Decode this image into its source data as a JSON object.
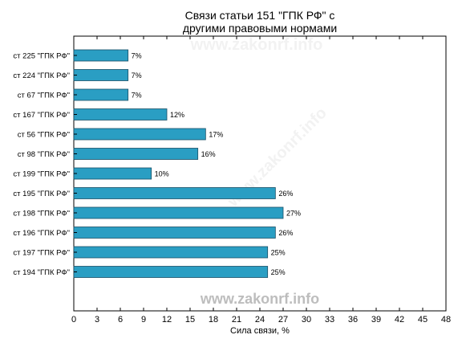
{
  "chart_data": {
    "type": "bar",
    "orientation": "horizontal",
    "title_lines": [
      "Связи статьи 151 \"ГПК РФ\" с",
      "другими правовыми нормами"
    ],
    "categories": [
      "ст 225 \"ГПК РФ\"",
      "ст 224 \"ГПК РФ\"",
      "ст 67 \"ГПК РФ\"",
      "ст 167 \"ГПК РФ\"",
      "ст 56 \"ГПК РФ\"",
      "ст 98 \"ГПК РФ\"",
      "ст 199 \"ГПК РФ\"",
      "ст 195 \"ГПК РФ\"",
      "ст 198 \"ГПК РФ\"",
      "ст 196 \"ГПК РФ\"",
      "ст 197 \"ГПК РФ\"",
      "ст 194 \"ГПК РФ\""
    ],
    "values": [
      7,
      7,
      7,
      12,
      17,
      16,
      10,
      26,
      27,
      26,
      25,
      25
    ],
    "data_labels": [
      "7%",
      "7%",
      "7%",
      "12%",
      "17%",
      "16%",
      "10%",
      "26%",
      "27%",
      "26%",
      "25%",
      "25%"
    ],
    "xlabel": "Сила связи, %",
    "xlim": [
      0,
      48
    ],
    "xticks": [
      0,
      3,
      6,
      9,
      12,
      15,
      18,
      21,
      24,
      27,
      30,
      33,
      36,
      39,
      42,
      45,
      48
    ],
    "grid": false,
    "bar_color": "#2a9ec3",
    "bar_edge_color": "#1a4f66"
  },
  "watermark": {
    "text": "www.zakonrf.info",
    "color": "#bdbdbd"
  }
}
